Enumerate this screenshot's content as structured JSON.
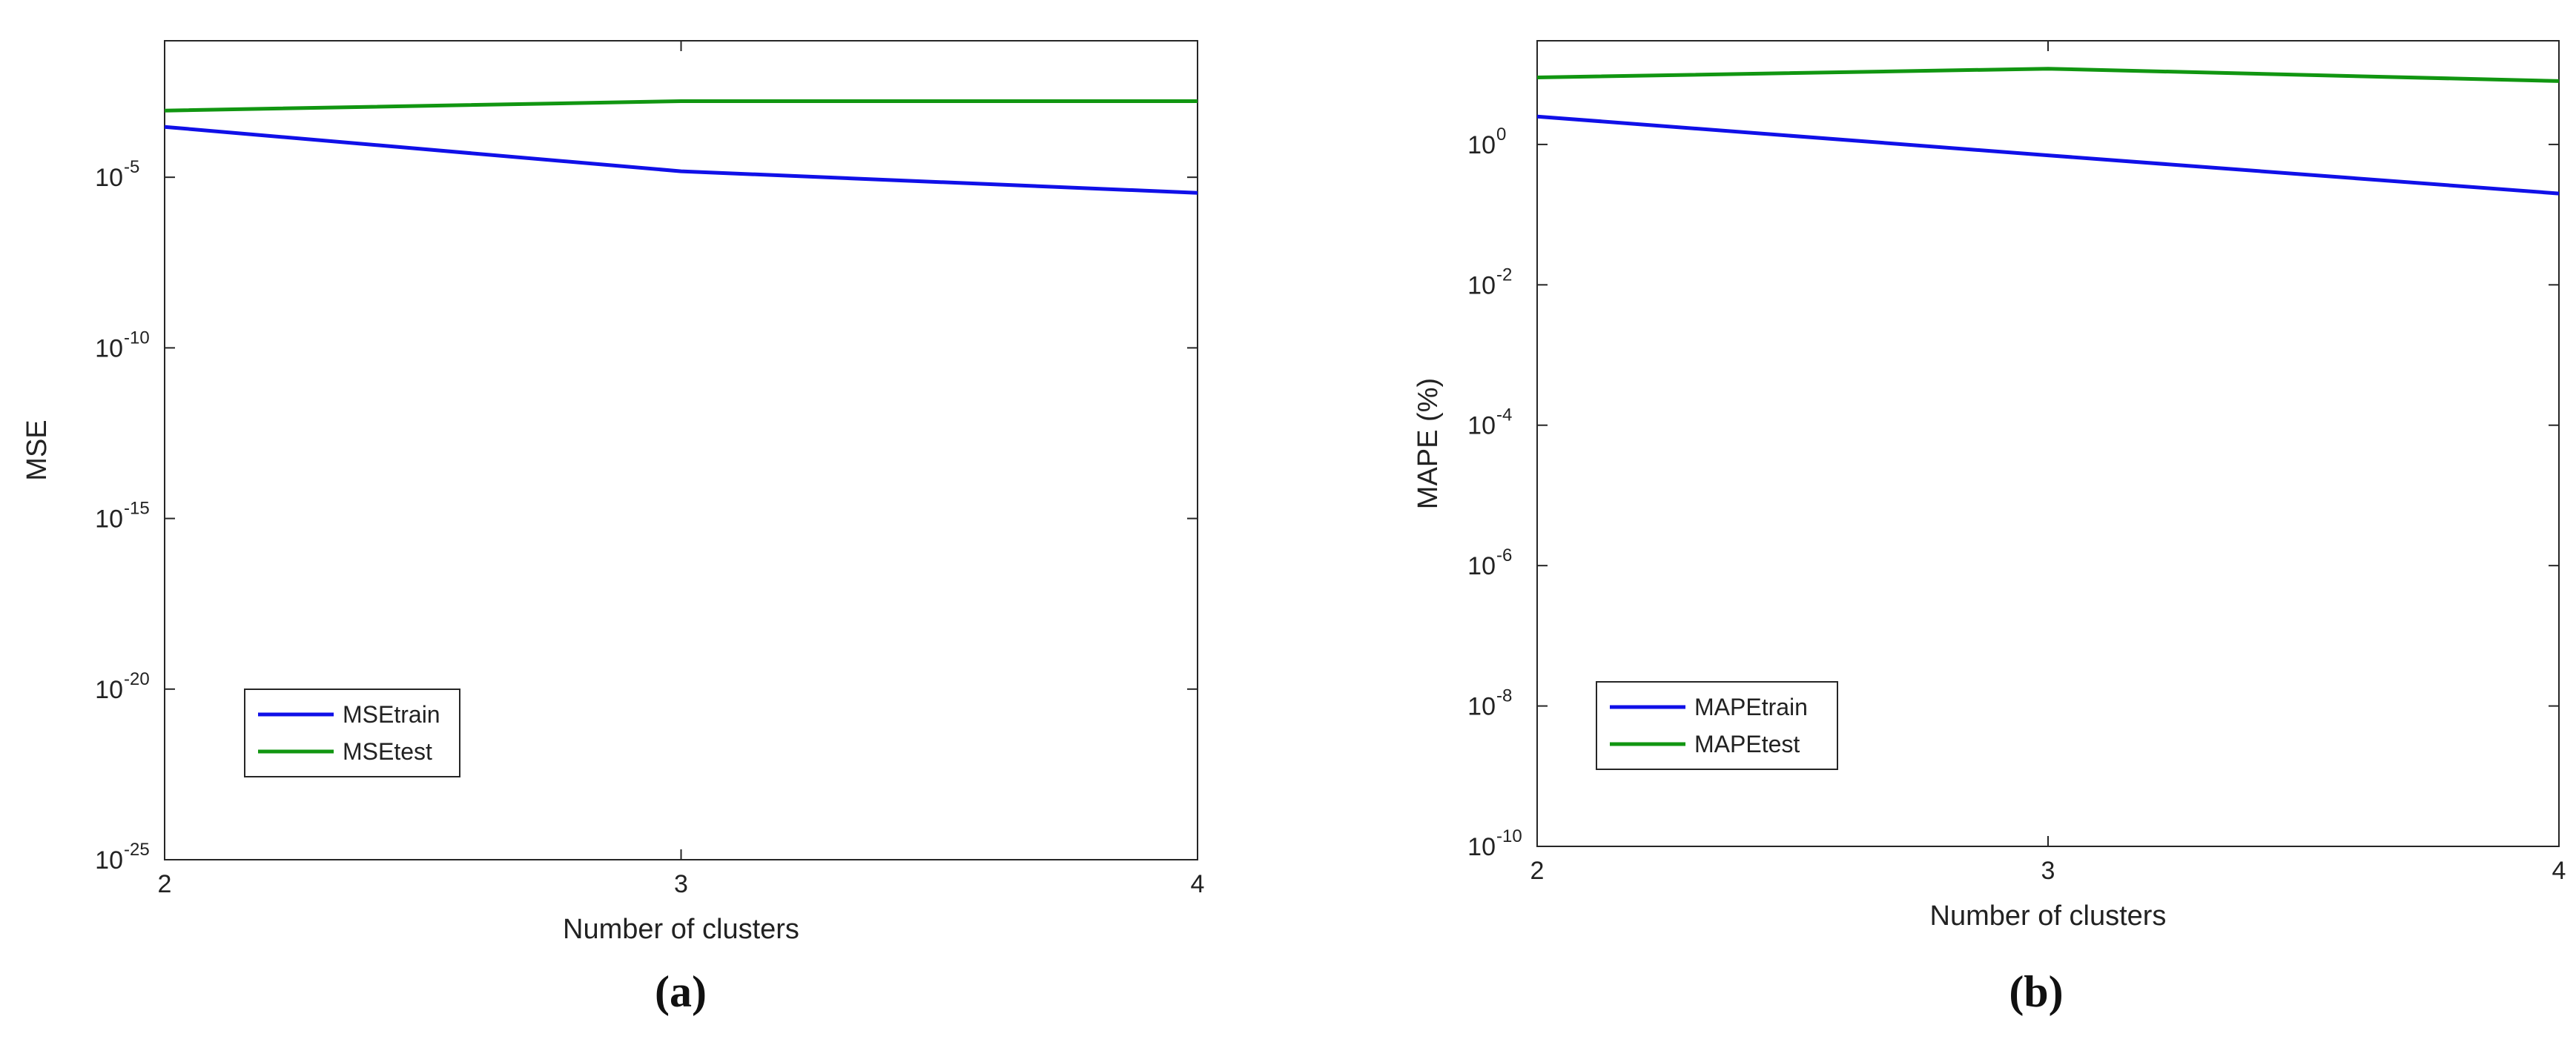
{
  "colors": {
    "train": "#1010e8",
    "test": "#119611",
    "axis": "#262626"
  },
  "chart_data": [
    {
      "type": "line",
      "caption": "(a)",
      "title": "",
      "xlabel": "Number of clusters",
      "ylabel": "MSE",
      "yscale": "log",
      "xlim": [
        2,
        4
      ],
      "ylim": [
        1e-25,
        0.1
      ],
      "xticks": [
        2,
        3,
        4
      ],
      "xtick_labels": [
        "2",
        "3",
        "4"
      ],
      "yticks": [
        1e-25,
        1e-20,
        1e-15,
        1e-10,
        1e-05
      ],
      "ytick_labels": [
        {
          "base": "10",
          "exp": "-25"
        },
        {
          "base": "10",
          "exp": "-20"
        },
        {
          "base": "10",
          "exp": "-15"
        },
        {
          "base": "10",
          "exp": "-10"
        },
        {
          "base": "10",
          "exp": "-5"
        }
      ],
      "x": [
        2,
        3,
        4
      ],
      "series": [
        {
          "name": "MSEtrain",
          "color": "#1010e8",
          "values": [
            0.0003,
            1.5e-05,
            3.5e-06
          ]
        },
        {
          "name": "MSEtest",
          "color": "#119611",
          "values": [
            0.0009,
            0.0017,
            0.0017
          ]
        }
      ],
      "legend": "lower-left",
      "grid": false
    },
    {
      "type": "line",
      "caption": "(b)",
      "title": "",
      "xlabel": "Number of clusters",
      "ylabel": "MAPE (%)",
      "yscale": "log",
      "xlim": [
        2,
        4
      ],
      "ylim": [
        1e-10,
        30
      ],
      "xticks": [
        2,
        3,
        4
      ],
      "xtick_labels": [
        "2",
        "3",
        "4"
      ],
      "yticks": [
        1e-10,
        1e-08,
        1e-06,
        0.0001,
        0.01,
        1
      ],
      "ytick_labels": [
        {
          "base": "10",
          "exp": "-10"
        },
        {
          "base": "10",
          "exp": "-8"
        },
        {
          "base": "10",
          "exp": "-6"
        },
        {
          "base": "10",
          "exp": "-4"
        },
        {
          "base": "10",
          "exp": "-2"
        },
        {
          "base": "10",
          "exp": "0"
        }
      ],
      "x": [
        2,
        3,
        4
      ],
      "series": [
        {
          "name": "MAPEtrain",
          "color": "#1010e8",
          "values": [
            2.5,
            0.7,
            0.2
          ]
        },
        {
          "name": "MAPEtest",
          "color": "#119611",
          "values": [
            9,
            12,
            8
          ]
        }
      ],
      "legend": "lower-left",
      "grid": false
    }
  ]
}
